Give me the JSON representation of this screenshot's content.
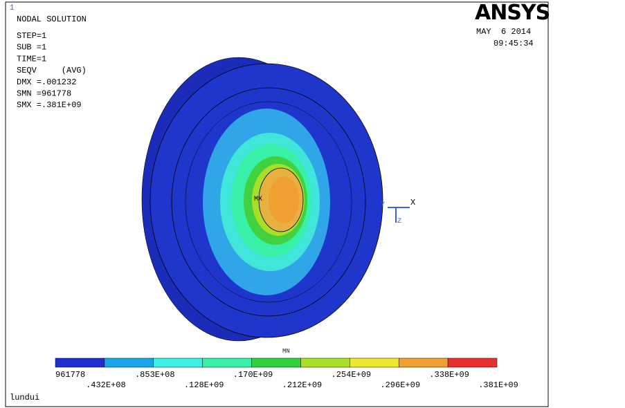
{
  "window_number": "1",
  "info": {
    "lines": [
      "NODAL SOLUTION",
      "STEP=1",
      "SUB =1",
      "TIME=1",
      "SEQV     (AVG)",
      "DMX =.001232",
      "SMN =961778",
      "SMX =.381E+09"
    ]
  },
  "logo": "ANSYS",
  "date": "MAY  6 2014",
  "time": "09:45:34",
  "triad": {
    "x": "X",
    "y": "Y",
    "z": "Z"
  },
  "markers": {
    "max": "MX",
    "min": "MN"
  },
  "legend": {
    "colors": [
      "#1f2fd0",
      "#1aa6e6",
      "#3cf0e4",
      "#38f0a8",
      "#30d040",
      "#a8e028",
      "#ece832",
      "#f0a030",
      "#e83030"
    ],
    "labels": [
      "961778",
      ".432E+08",
      ".853E+08",
      ".128E+09",
      ".170E+09",
      ".212E+09",
      ".254E+09",
      ".296E+09",
      ".338E+09",
      ".381E+09"
    ]
  },
  "footer": "lundui"
}
